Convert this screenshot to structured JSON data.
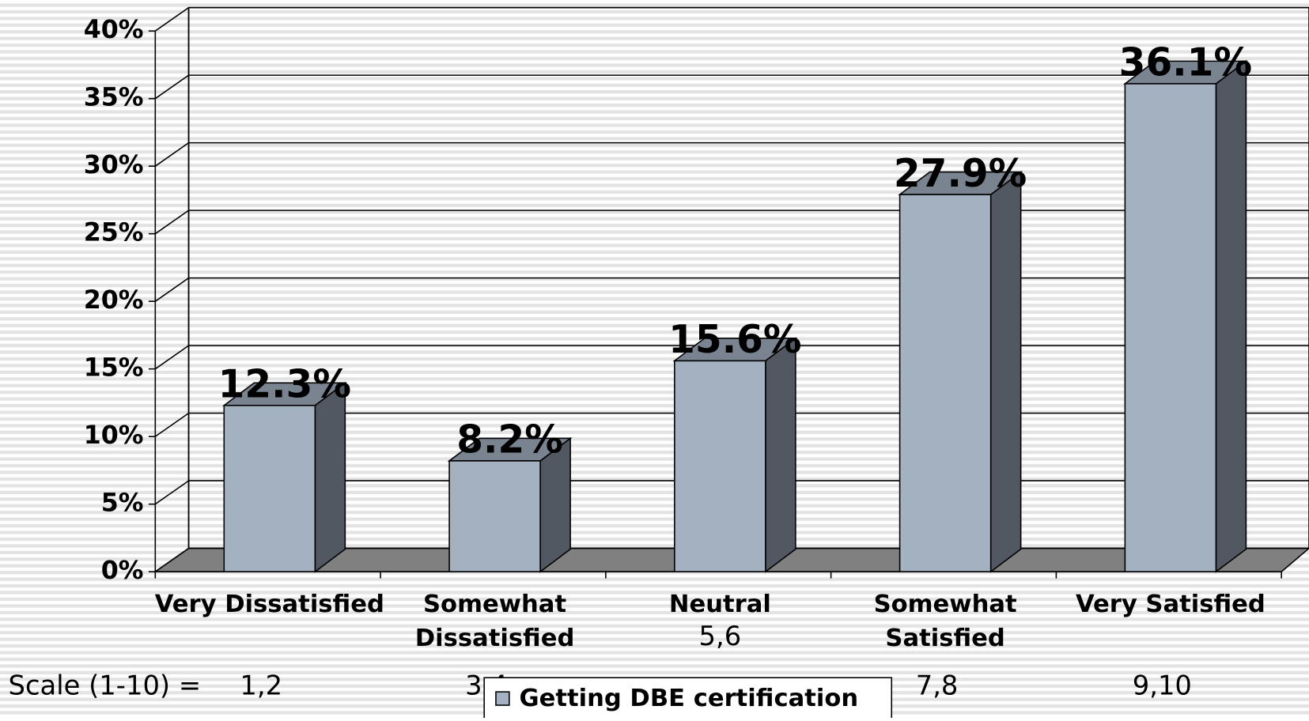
{
  "chart_data": {
    "type": "bar",
    "categories": [
      "Very Dissatisfied",
      "Somewhat Dissatisfied",
      "Neutral",
      "Somewhat Satisfied",
      "Very Satisfied"
    ],
    "scale_label": "Scale (1-10) =",
    "scale": [
      "1,2",
      "3,4",
      "5,6",
      "7,8",
      "9,10"
    ],
    "series": [
      {
        "name": "Getting DBE certification",
        "color": "#a3b1c1",
        "values": [
          12.3,
          8.2,
          15.6,
          27.9,
          36.1
        ],
        "value_labels": [
          "12.3%",
          "8.2%",
          "15.6%",
          "27.9%",
          "36.1%"
        ]
      }
    ],
    "ylim": [
      0,
      40
    ],
    "yticks": [
      {
        "value": 0,
        "label": "0%"
      },
      {
        "value": 5,
        "label": "5%"
      },
      {
        "value": 10,
        "label": "10%"
      },
      {
        "value": 15,
        "label": "15%"
      },
      {
        "value": 20,
        "label": "20%"
      },
      {
        "value": 25,
        "label": "25%"
      },
      {
        "value": 30,
        "label": "30%"
      },
      {
        "value": 35,
        "label": "35%"
      },
      {
        "value": 40,
        "label": "40%"
      }
    ],
    "grid": true
  }
}
